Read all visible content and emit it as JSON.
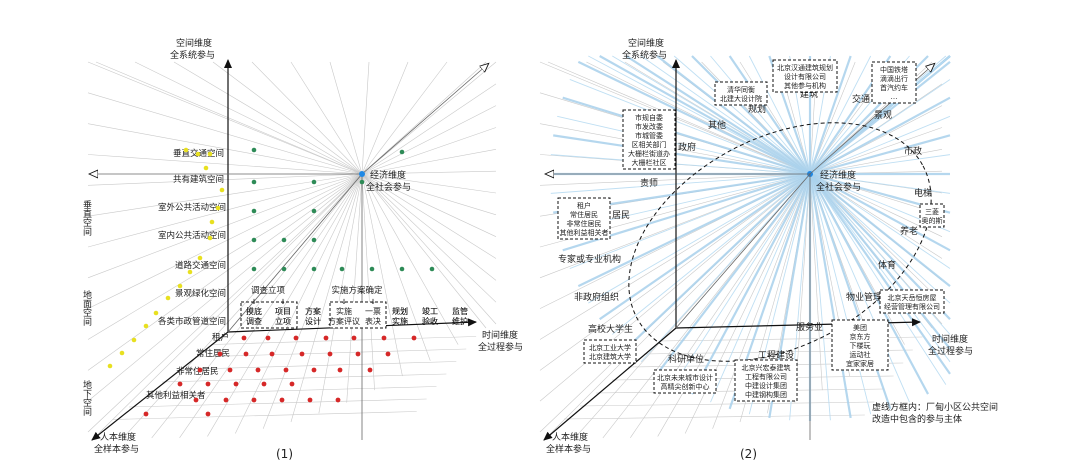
{
  "panel1": {
    "caption": "(1)",
    "axis_top": [
      "空间维度",
      "全系统参与"
    ],
    "axis_right": [
      "时间维度",
      "全过程参与"
    ],
    "axis_left": [
      "人本维度",
      "全样本参与"
    ],
    "origin_label": [
      "经济维度",
      "全社会参与"
    ],
    "zones": [
      {
        "label": "垂直空间",
        "from": "空间维度-上段"
      },
      {
        "label": "地面空间",
        "from": "空间维度-中段"
      },
      {
        "label": "地下空间",
        "from": "空间维度-下段"
      }
    ],
    "space_levels": [
      "垂直交通空间",
      "共有建筑空间",
      "室外公共活动空间",
      "室内公共活动空间",
      "道路交通空间",
      "景观绿化空间",
      "各类市政管道空间"
    ],
    "time_groups": [
      {
        "label": "调查立项",
        "children": [
          "摸底调查",
          "项目立项"
        ]
      },
      {
        "label": "实施方案确定",
        "children": [
          "实施方案评议",
          "一票表决"
        ]
      }
    ],
    "time_stages": [
      "摸底调查",
      "项目立项",
      "方案设计",
      "实施方案评议",
      "一票表决",
      "规划实施",
      "竣工验收",
      "监管维护"
    ],
    "people_levels": [
      "租户",
      "常住居民",
      "非常住居民",
      "其他利益相关者"
    ],
    "marker_colors": {
      "space": "#e8e020",
      "green": "#2e8b57",
      "people": "#d62828",
      "origin": "#1e88e5"
    }
  },
  "panel2": {
    "caption": "(2)",
    "axis_top": [
      "空间维度",
      "全系统参与"
    ],
    "axis_right": [
      "时间维度",
      "全过程参与"
    ],
    "axis_left": [
      "人本维度",
      "全样本参与"
    ],
    "origin_label": [
      "经济维度",
      "全社会参与"
    ],
    "actors": [
      "建筑",
      "交通",
      "景观",
      "市政",
      "电梯",
      "养老",
      "体育",
      "物业管理",
      "服务业",
      "工程建设",
      "科研单位",
      "高校大学生",
      "非政府组织",
      "专家或专业机构",
      "居民",
      "责师",
      "政府",
      "其他",
      "规划"
    ],
    "boxes": [
      {
        "lines": [
          "北京汉通建筑规划",
          "设计有限公司",
          "其他参与机构"
        ]
      },
      {
        "lines": [
          "清华同衡",
          "北建大设计院"
        ]
      },
      {
        "lines": [
          "中国铁塔",
          "滴滴出行",
          "首汽约车",
          "…"
        ]
      },
      {
        "lines": [
          "市规自委",
          "市发改委",
          "市城管委",
          "区相关部门",
          "大栅栏街道办",
          "大栅栏社区"
        ]
      },
      {
        "lines": [
          "租户",
          "常住居民",
          "非常住居民",
          "其他利益相关者"
        ]
      },
      {
        "lines": [
          "三菱",
          "奥的斯"
        ]
      },
      {
        "lines": [
          "北京天岳恒房屋",
          "经营管理有限公司"
        ]
      },
      {
        "lines": [
          "美团",
          "京东方",
          "下楼玩",
          "运动社",
          "宜家家居"
        ]
      },
      {
        "lines": [
          "北京工业大学",
          "北京建筑大学"
        ]
      },
      {
        "lines": [
          "北京未来城市设计",
          "高精尖创新中心"
        ]
      },
      {
        "lines": [
          "北京兴宏泰建筑",
          "工程有限公司",
          "中建设计集团",
          "中建钢构集团"
        ]
      }
    ],
    "note": [
      "虚线方框内：厂甸小区公共空间",
      "改造中包含的参与主体"
    ]
  }
}
